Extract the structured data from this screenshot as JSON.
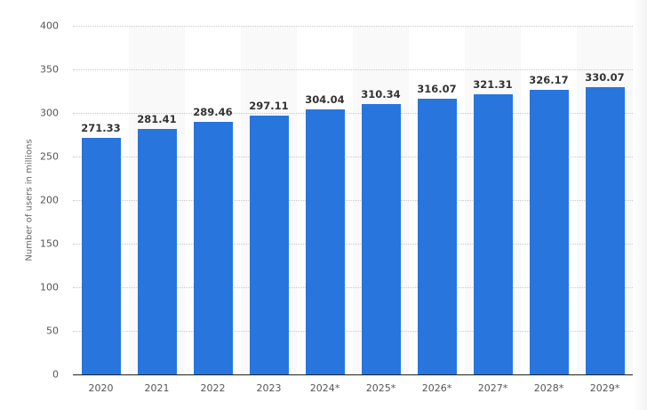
{
  "chart_data": {
    "type": "bar",
    "title": "",
    "xlabel": "",
    "ylabel": "Number of users in millions",
    "ylim": [
      0,
      400
    ],
    "yticks": [
      0,
      50,
      100,
      150,
      200,
      250,
      300,
      350,
      400
    ],
    "grid": true,
    "legend": null,
    "categories": [
      "2020",
      "2021",
      "2022",
      "2023",
      "2024*",
      "2025*",
      "2026*",
      "2027*",
      "2028*",
      "2029*"
    ],
    "values": [
      271.33,
      281.41,
      289.46,
      297.11,
      304.04,
      310.34,
      316.07,
      321.31,
      326.17,
      330.07
    ],
    "value_labels": [
      "271.33",
      "281.41",
      "289.46",
      "297.11",
      "304.04",
      "310.34",
      "316.07",
      "321.31",
      "326.17",
      "330.07"
    ],
    "bar_color": "#2876dd"
  }
}
